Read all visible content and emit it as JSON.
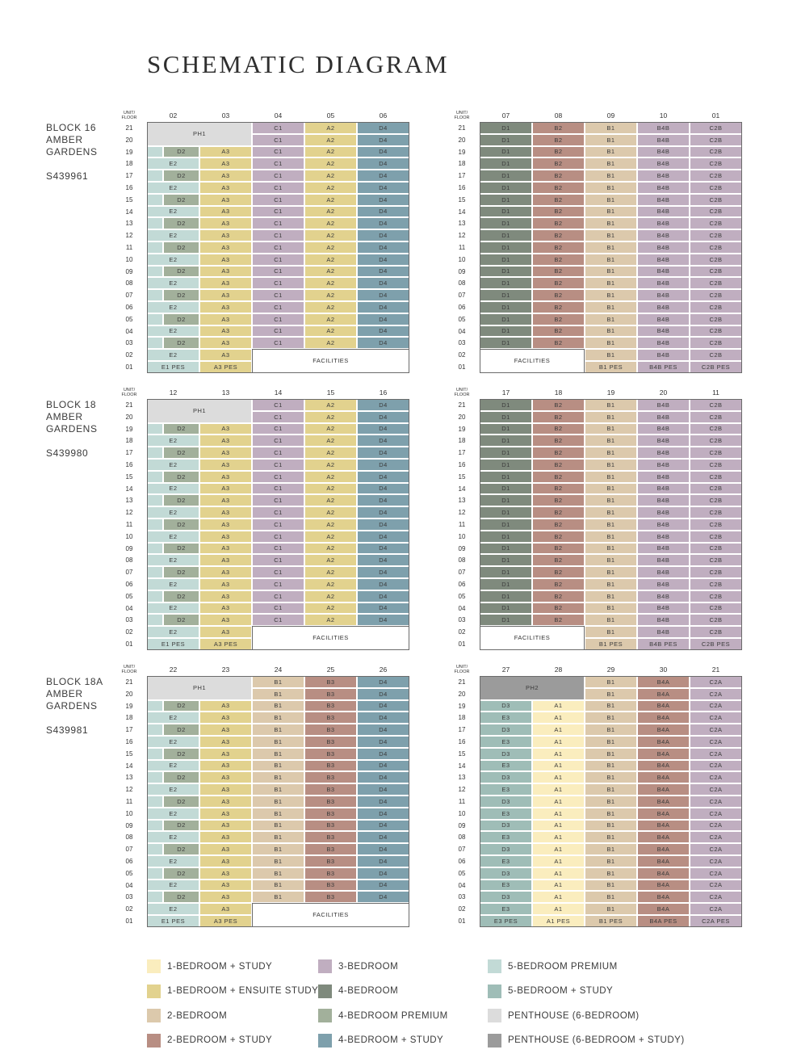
{
  "title": "SCHEMATIC DIAGRAM",
  "header_unit_floor": [
    "UNIT/",
    "FLOOR"
  ],
  "facilities_label": "FACILITIES",
  "colors": {
    "1BS": "#faedbe",
    "1BES": "#e2d28e",
    "2B": "#dcc9ac",
    "2BS": "#b88e83",
    "3B": "#c0aec0",
    "4B": "#7f8a7d",
    "4BP": "#a2b09b",
    "4BS": "#7ea0ac",
    "5BP": "#c2dad6",
    "5BS": "#9fbdb7",
    "PH": "#dcdcdc",
    "PHS": "#9b9b9b"
  },
  "blocks": [
    {
      "name_lines": [
        "BLOCK 16",
        "AMBER",
        "GARDENS"
      ],
      "code": "S439961",
      "left": {
        "units": [
          "02",
          "03",
          "04",
          "05",
          "06"
        ],
        "ph": {
          "label": "PH1",
          "type": "PH",
          "span": 2
        },
        "col_types": [
          "5BP",
          "1BES",
          "3B",
          "1BES",
          "4BS"
        ],
        "col_labels": [
          "D2|E2",
          "A3",
          "C1",
          "A2",
          "D4"
        ],
        "alt_types": [
          "4BP|5BP"
        ],
        "ground": {
          "row02": [
            "E2",
            "A3"
          ],
          "row01": [
            "E1 PES",
            "A3 PES"
          ]
        }
      },
      "right": {
        "units": [
          "07",
          "08",
          "09",
          "10",
          "01"
        ],
        "col_types": [
          "4B",
          "2BS",
          "2B",
          "3B",
          "3B"
        ],
        "col_labels": [
          "D1",
          "B2",
          "B1",
          "B4B",
          "C2B"
        ],
        "ground": {
          "row02": [
            "B1",
            "B4B",
            "C2B"
          ],
          "row01": [
            "B1 PES",
            "B4B PES",
            "C2B PES"
          ]
        }
      }
    },
    {
      "name_lines": [
        "BLOCK 18",
        "AMBER",
        "GARDENS"
      ],
      "code": "S439980",
      "left": {
        "units": [
          "12",
          "13",
          "14",
          "15",
          "16"
        ],
        "ph": {
          "label": "PH1",
          "type": "PH",
          "span": 2
        },
        "col_types": [
          "5BP",
          "1BES",
          "3B",
          "1BES",
          "4BS"
        ],
        "col_labels": [
          "D2|E2",
          "A3",
          "C1",
          "A2",
          "D4"
        ],
        "ground": {
          "row02": [
            "E2",
            "A3"
          ],
          "row01": [
            "E1 PES",
            "A3 PES"
          ]
        }
      },
      "right": {
        "units": [
          "17",
          "18",
          "19",
          "20",
          "11"
        ],
        "col_types": [
          "4B",
          "2BS",
          "2B",
          "3B",
          "3B"
        ],
        "col_labels": [
          "D1",
          "B2",
          "B1",
          "B4B",
          "C2B"
        ],
        "ground": {
          "row02": [
            "B1",
            "B4B",
            "C2B"
          ],
          "row01": [
            "B1 PES",
            "B4B PES",
            "C2B PES"
          ]
        }
      }
    },
    {
      "name_lines": [
        "BLOCK 18A",
        "AMBER",
        "GARDENS"
      ],
      "code": "S439981",
      "left": {
        "units": [
          "22",
          "23",
          "24",
          "25",
          "26"
        ],
        "ph": {
          "label": "PH1",
          "type": "PH",
          "span": 2
        },
        "col_types": [
          "5BP",
          "1BES",
          "2B",
          "2BS",
          "4BS"
        ],
        "col_labels": [
          "D2|E2",
          "A3",
          "B1",
          "B3",
          "D4"
        ],
        "ground": {
          "row02": [
            "E2",
            "A3"
          ],
          "row01": [
            "E1 PES",
            "A3 PES"
          ]
        }
      },
      "right": {
        "units": [
          "27",
          "28",
          "29",
          "30",
          "21"
        ],
        "ph": {
          "label": "PH2",
          "type": "PHS",
          "span": 2
        },
        "col_types": [
          "5BS",
          "1BS",
          "2B",
          "2BS",
          "3B"
        ],
        "col_labels": [
          "D3|E3",
          "A1",
          "B1",
          "B4A",
          "C2A"
        ],
        "ground": {
          "row02": [
            "E3",
            "A1",
            "B1",
            "B4A",
            "C2A"
          ],
          "row01": [
            "E3 PES",
            "A1 PES",
            "B1 PES",
            "B4A PES",
            "C2A PES"
          ]
        }
      }
    }
  ],
  "floors": [
    "21",
    "20",
    "19",
    "18",
    "17",
    "16",
    "15",
    "14",
    "13",
    "12",
    "11",
    "10",
    "09",
    "08",
    "07",
    "06",
    "05",
    "04",
    "03",
    "02",
    "01"
  ],
  "legend": [
    {
      "label": "1-BEDROOM + STUDY",
      "type": "1BS"
    },
    {
      "label": "1-BEDROOM + ENSUITE STUDY",
      "type": "1BES"
    },
    {
      "label": "2-BEDROOM",
      "type": "2B"
    },
    {
      "label": "2-BEDROOM + STUDY",
      "type": "2BS"
    },
    {
      "label": "3-BEDROOM",
      "type": "3B"
    },
    {
      "label": "4-BEDROOM",
      "type": "4B"
    },
    {
      "label": "4-BEDROOM PREMIUM",
      "type": "4BP"
    },
    {
      "label": "4-BEDROOM + STUDY",
      "type": "4BS"
    },
    {
      "label": "5-BEDROOM PREMIUM",
      "type": "5BP"
    },
    {
      "label": "5-BEDROOM + STUDY",
      "type": "5BS"
    },
    {
      "label": "PENTHOUSE (6-BEDROOM)",
      "type": "PH"
    },
    {
      "label": "PENTHOUSE (6-BEDROOM + STUDY)",
      "type": "PHS"
    }
  ]
}
